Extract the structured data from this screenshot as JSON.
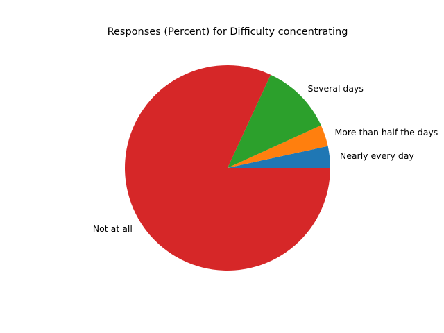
{
  "chart_data": {
    "type": "pie",
    "title": "Responses (Percent) for Difficulty concentrating",
    "categories": [
      "Nearly every day",
      "More than half the days",
      "Several days",
      "Not at all"
    ],
    "values": [
      3.4,
      3.4,
      11.3,
      81.9
    ],
    "colors": [
      "#1f77b4",
      "#ff7f0e",
      "#2ca02c",
      "#d62728"
    ],
    "start_angle_deg": 0,
    "direction": "counterclockwise"
  }
}
